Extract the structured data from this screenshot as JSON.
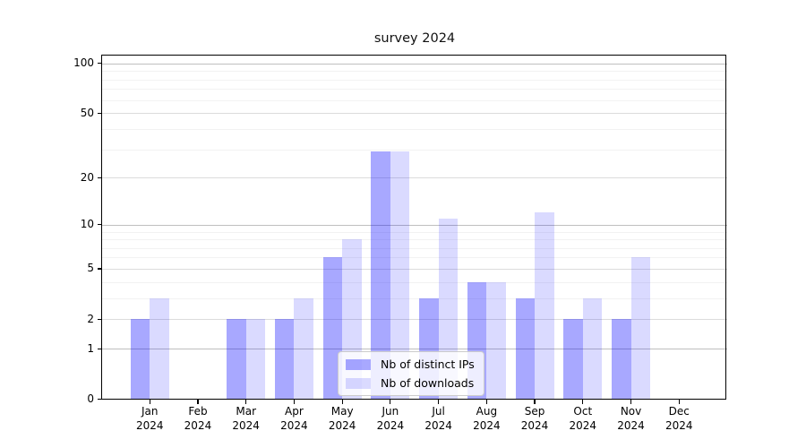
{
  "title": "survey 2024",
  "legend": {
    "items": [
      {
        "label": "Nb of distinct IPs",
        "series_key": "distinct_ips"
      },
      {
        "label": "Nb of downloads",
        "series_key": "downloads"
      }
    ]
  },
  "chart_data": {
    "type": "bar",
    "title": "survey 2024",
    "categories": [
      "Jan 2024",
      "Feb 2024",
      "Mar 2024",
      "Apr 2024",
      "May 2024",
      "Jun 2024",
      "Jul 2024",
      "Aug 2024",
      "Sep 2024",
      "Oct 2024",
      "Nov 2024",
      "Dec 2024"
    ],
    "series": [
      {
        "name": "Nb of distinct IPs",
        "values": [
          2,
          0,
          2,
          2,
          6,
          29,
          3,
          4,
          3,
          2,
          2,
          0
        ]
      },
      {
        "name": "Nb of downloads",
        "values": [
          3,
          0,
          2,
          3,
          8,
          29,
          11,
          4,
          12,
          3,
          6,
          0
        ]
      }
    ],
    "yscale": "log1p",
    "ylim": [
      0,
      112
    ],
    "yticks": [
      0,
      1,
      2,
      5,
      10,
      20,
      50,
      100
    ],
    "minor_yticks": [
      3,
      4,
      6,
      7,
      8,
      9,
      30,
      40,
      60,
      70,
      80,
      90
    ],
    "grid": true,
    "legend_position": "lower center"
  },
  "colors": {
    "bar_base": "#0000ff",
    "distinct_ips_alpha": 0.34,
    "downloads_alpha": 0.145,
    "major_grid": "#bfbfbf",
    "mid_grid": "#dcdcdc",
    "minor_grid": "#f2f2f2",
    "axis": "#000000"
  }
}
